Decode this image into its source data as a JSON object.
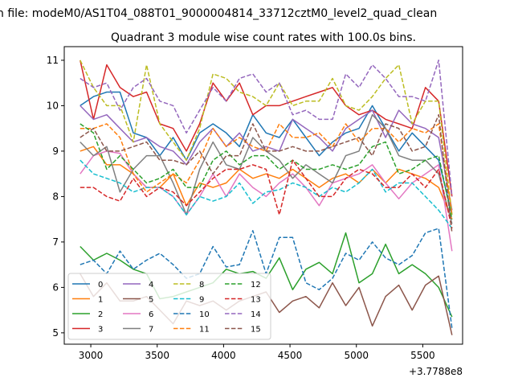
{
  "chart_data": {
    "type": "line",
    "suptitle": "n file: modeM0/AS1T04_088T01_9000004814_33712cztM0_level2_quad_clean",
    "title": "Quadrant 3 module wise count rates with 100.0s bins.",
    "xlabel": "",
    "ylabel": "",
    "x_offset_label": "+3.7788e8",
    "xlim": [
      2800,
      5800
    ],
    "ylim": [
      4.75,
      11.3
    ],
    "xticks": [
      3000,
      3500,
      4000,
      4500,
      5000,
      5500
    ],
    "yticks": [
      5,
      6,
      7,
      8,
      9,
      10,
      11
    ],
    "grid": false,
    "legend_position": "lower-left",
    "legend_ncol": 4,
    "x": [
      2920,
      3020,
      3120,
      3220,
      3320,
      3420,
      3520,
      3620,
      3720,
      3820,
      3920,
      4020,
      4120,
      4220,
      4320,
      4420,
      4520,
      4620,
      4720,
      4820,
      4920,
      5020,
      5120,
      5220,
      5320,
      5420,
      5520,
      5620,
      5720
    ],
    "series": [
      {
        "name": "0",
        "color": "#1f77b4",
        "dash": "solid",
        "values": [
          10.0,
          10.2,
          10.3,
          10.3,
          9.4,
          9.3,
          8.9,
          9.3,
          8.8,
          9.4,
          9.6,
          9.4,
          9.1,
          9.8,
          9.4,
          9.3,
          9.7,
          9.3,
          8.9,
          9.2,
          9.4,
          9.5,
          10.0,
          9.5,
          9.0,
          9.4,
          9.1,
          8.8,
          7.6
        ]
      },
      {
        "name": "1",
        "color": "#ff7f0e",
        "dash": "solid",
        "values": [
          9.0,
          9.1,
          8.7,
          8.7,
          8.5,
          8.2,
          8.2,
          8.5,
          7.8,
          8.3,
          8.2,
          8.3,
          8.6,
          8.4,
          8.5,
          8.4,
          8.6,
          8.4,
          8.2,
          8.4,
          8.5,
          8.3,
          8.6,
          8.3,
          8.6,
          8.5,
          8.4,
          8.2,
          7.5
        ]
      },
      {
        "name": "2",
        "color": "#2ca02c",
        "dash": "solid",
        "values": [
          6.9,
          6.6,
          6.75,
          6.6,
          6.4,
          6.3,
          5.75,
          5.8,
          5.9,
          6.0,
          6.1,
          6.4,
          6.3,
          6.35,
          6.2,
          6.65,
          5.95,
          6.4,
          6.55,
          6.3,
          7.2,
          6.1,
          6.3,
          6.95,
          6.3,
          6.5,
          6.3,
          6.0,
          5.35
        ]
      },
      {
        "name": "3",
        "color": "#d62728",
        "dash": "solid",
        "values": [
          11.0,
          9.7,
          10.9,
          10.4,
          10.2,
          10.3,
          9.6,
          9.5,
          9.0,
          9.6,
          10.5,
          10.1,
          10.5,
          9.8,
          10.0,
          10.0,
          10.1,
          10.2,
          10.3,
          10.4,
          10.0,
          9.8,
          9.9,
          9.7,
          9.6,
          9.5,
          10.4,
          10.1,
          8.0
        ]
      },
      {
        "name": "4",
        "color": "#9467bd",
        "dash": "solid",
        "values": [
          10.0,
          9.7,
          9.8,
          9.5,
          9.2,
          9.3,
          9.1,
          9.0,
          8.7,
          9.2,
          9.5,
          9.1,
          9.4,
          9.0,
          9.1,
          9.0,
          9.7,
          9.5,
          9.3,
          9.0,
          9.5,
          9.7,
          9.9,
          9.3,
          9.9,
          9.6,
          9.5,
          9.3,
          7.7
        ]
      },
      {
        "name": "5",
        "color": "#8c564b",
        "dash": "solid",
        "values": [
          6.3,
          5.8,
          6.1,
          5.7,
          5.7,
          5.8,
          5.5,
          5.2,
          5.7,
          5.6,
          5.7,
          5.5,
          5.7,
          5.8,
          5.9,
          5.45,
          5.7,
          5.8,
          5.55,
          6.1,
          5.6,
          6.0,
          5.15,
          5.8,
          6.05,
          5.5,
          6.05,
          6.25,
          4.95
        ]
      },
      {
        "name": "6",
        "color": "#e377c2",
        "dash": "solid",
        "values": [
          8.5,
          8.9,
          9.0,
          8.95,
          8.5,
          8.2,
          8.2,
          8.0,
          7.6,
          8.0,
          8.5,
          8.0,
          8.5,
          8.2,
          8.0,
          8.3,
          8.5,
          8.2,
          7.8,
          8.3,
          8.4,
          8.5,
          8.7,
          8.3,
          7.95,
          8.3,
          8.5,
          8.7,
          6.8
        ]
      },
      {
        "name": "7",
        "color": "#7f7f7f",
        "dash": "solid",
        "values": [
          9.2,
          8.9,
          9.1,
          8.1,
          8.6,
          8.9,
          8.9,
          8.3,
          7.6,
          8.6,
          9.2,
          8.7,
          8.6,
          9.3,
          9.0,
          8.8,
          8.4,
          8.7,
          8.5,
          8.3,
          8.9,
          9.0,
          9.8,
          9.5,
          8.9,
          8.8,
          8.8,
          8.5,
          7.4
        ]
      },
      {
        "name": "8",
        "color": "#bcbd22",
        "dash": "dashed",
        "values": [
          11.0,
          10.4,
          10.0,
          10.0,
          9.2,
          10.9,
          9.6,
          9.2,
          8.8,
          9.5,
          10.7,
          10.6,
          10.3,
          10.2,
          10.0,
          10.5,
          10.0,
          10.1,
          10.1,
          10.6,
          10.0,
          9.9,
          10.2,
          10.6,
          10.9,
          9.6,
          10.1,
          10.1,
          7.6
        ]
      },
      {
        "name": "9",
        "color": "#17becf",
        "dash": "dashed",
        "values": [
          8.8,
          8.5,
          8.4,
          8.3,
          8.1,
          8.2,
          8.2,
          8.0,
          7.6,
          8.0,
          7.9,
          8.0,
          8.3,
          7.85,
          8.1,
          8.15,
          8.3,
          8.2,
          8.0,
          8.2,
          8.1,
          8.3,
          8.6,
          8.1,
          8.3,
          8.3,
          8.0,
          7.7,
          7.3
        ]
      },
      {
        "name": "10",
        "color": "#1f77b4",
        "dash": "dashed",
        "values": [
          6.5,
          6.6,
          6.3,
          6.8,
          6.4,
          6.6,
          6.75,
          6.5,
          6.2,
          6.3,
          6.9,
          6.45,
          6.5,
          7.25,
          6.3,
          7.1,
          7.1,
          6.1,
          5.95,
          6.2,
          6.75,
          6.6,
          7.0,
          6.65,
          6.5,
          6.7,
          7.2,
          7.3,
          5.1
        ]
      },
      {
        "name": "11",
        "color": "#ff7f0e",
        "dash": "dashed",
        "values": [
          9.5,
          9.5,
          9.6,
          9.3,
          8.5,
          8.1,
          8.3,
          8.5,
          8.3,
          8.8,
          9.5,
          9.1,
          9.3,
          9.1,
          9.0,
          9.6,
          9.3,
          9.3,
          9.4,
          9.1,
          9.6,
          9.2,
          9.5,
          9.5,
          9.2,
          9.5,
          9.4,
          9.6,
          7.6
        ]
      },
      {
        "name": "12",
        "color": "#2ca02c",
        "dash": "dashed",
        "values": [
          9.6,
          9.4,
          8.6,
          8.9,
          8.6,
          8.3,
          8.4,
          8.6,
          8.2,
          8.2,
          8.8,
          9.0,
          8.7,
          8.9,
          8.9,
          8.6,
          8.8,
          8.6,
          8.6,
          8.7,
          8.6,
          8.7,
          9.1,
          9.2,
          8.5,
          8.6,
          8.8,
          8.9,
          7.5
        ]
      },
      {
        "name": "13",
        "color": "#d62728",
        "dash": "dashed",
        "values": [
          8.2,
          8.2,
          8.0,
          7.9,
          8.4,
          8.0,
          8.2,
          8.1,
          7.8,
          8.1,
          8.4,
          8.6,
          8.6,
          8.7,
          8.6,
          7.6,
          8.8,
          8.4,
          8.0,
          8.0,
          8.4,
          8.6,
          8.5,
          8.2,
          8.2,
          8.5,
          8.2,
          8.6,
          7.3
        ]
      },
      {
        "name": "14",
        "color": "#9467bd",
        "dash": "dashed",
        "values": [
          10.6,
          10.4,
          10.5,
          9.9,
          10.4,
          10.6,
          10.1,
          10.0,
          9.4,
          9.9,
          10.4,
          10.1,
          10.6,
          10.7,
          10.3,
          10.5,
          9.8,
          9.9,
          9.7,
          9.7,
          10.7,
          10.4,
          10.9,
          10.6,
          10.2,
          10.2,
          10.1,
          11.0,
          8.0
        ]
      },
      {
        "name": "15",
        "color": "#8c564b",
        "dash": "dashed",
        "values": [
          9.3,
          9.5,
          9.0,
          9.0,
          9.1,
          9.2,
          8.8,
          8.8,
          8.7,
          9.0,
          8.5,
          8.9,
          8.9,
          9.6,
          9.0,
          9.0,
          9.1,
          9.0,
          9.0,
          9.1,
          9.2,
          9.3,
          8.9,
          9.6,
          9.5,
          9.0,
          9.1,
          9.8,
          7.2
        ]
      }
    ]
  }
}
